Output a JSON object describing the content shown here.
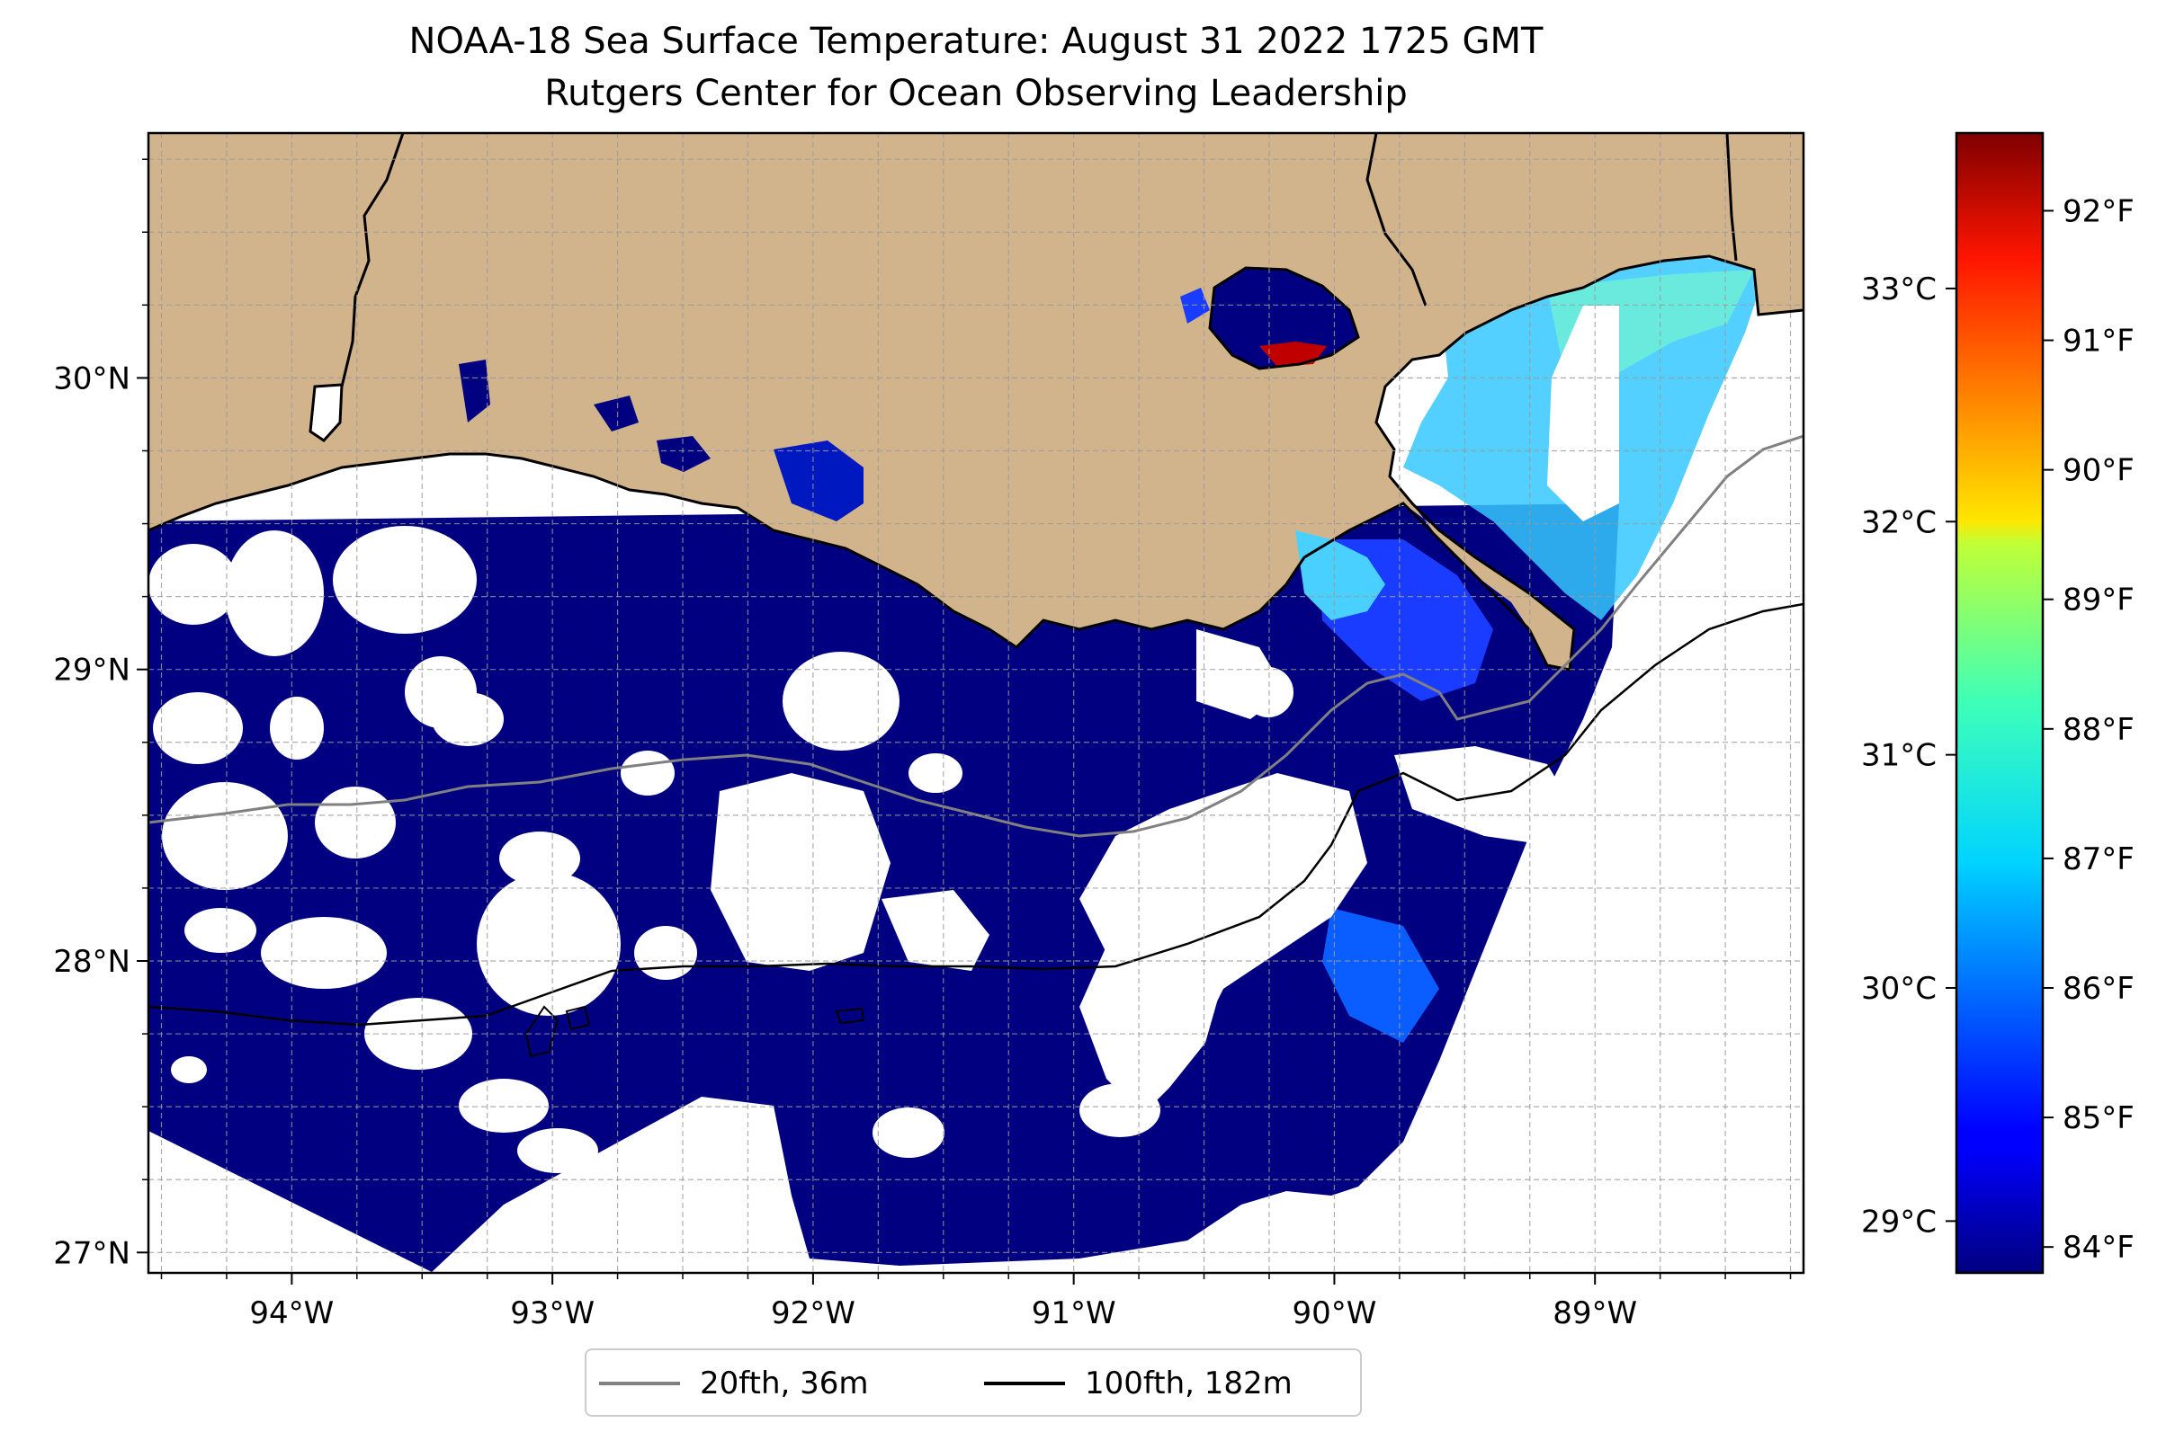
{
  "title_line1": "NOAA-18 Sea Surface Temperature: August 31 2022 1725 GMT",
  "title_line2": "Rutgers Center for Ocean Observing Leadership",
  "map": {
    "lon_range": [
      -94.55,
      -88.2
    ],
    "lat_range": [
      26.93,
      30.84
    ],
    "lon_ticks": [
      {
        "value": -94,
        "label": "94°W"
      },
      {
        "value": -93,
        "label": "93°W"
      },
      {
        "value": -92,
        "label": "92°W"
      },
      {
        "value": -91,
        "label": "91°W"
      },
      {
        "value": -90,
        "label": "90°W"
      },
      {
        "value": -89,
        "label": "89°W"
      }
    ],
    "lat_ticks": [
      {
        "value": 30,
        "label": "30°N"
      },
      {
        "value": 29,
        "label": "29°N"
      },
      {
        "value": 28,
        "label": "28°N"
      },
      {
        "value": 27,
        "label": "27°N"
      }
    ],
    "gridlines": "dashed",
    "land_color": "#d2b48c",
    "ocean_fill_color": "#000080",
    "cloud_mask_color": "#ffffff"
  },
  "colorbar": {
    "colormap": "jet",
    "fahrenheit_ticks": [
      {
        "value": 84,
        "label": "84°F"
      },
      {
        "value": 85,
        "label": "85°F"
      },
      {
        "value": 86,
        "label": "86°F"
      },
      {
        "value": 87,
        "label": "87°F"
      },
      {
        "value": 88,
        "label": "88°F"
      },
      {
        "value": 89,
        "label": "89°F"
      },
      {
        "value": 90,
        "label": "90°F"
      },
      {
        "value": 91,
        "label": "91°F"
      },
      {
        "value": 92,
        "label": "92°F"
      }
    ],
    "celsius_ticks": [
      {
        "value": 29,
        "label": "29°C"
      },
      {
        "value": 30,
        "label": "30°C"
      },
      {
        "value": 31,
        "label": "31°C"
      },
      {
        "value": 32,
        "label": "32°C"
      },
      {
        "value": 33,
        "label": "33°C"
      }
    ],
    "range_f": [
      83.8,
      92.6
    ]
  },
  "legend": {
    "items": [
      {
        "label": "20fth, 36m",
        "color": "#808080"
      },
      {
        "label": "100fth, 182m",
        "color": "#000000"
      }
    ]
  }
}
